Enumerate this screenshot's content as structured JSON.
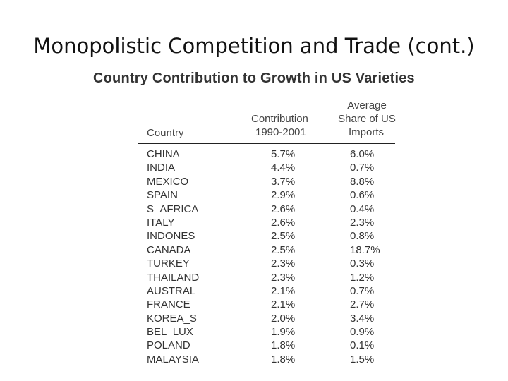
{
  "slide": {
    "title": "Monopolistic Competition and Trade (cont.)"
  },
  "table": {
    "title": "Country Contribution to Growth in US Varieties",
    "headers": {
      "country": "Country",
      "contribution_line1": "Contribution",
      "contribution_line2": "1990-2001",
      "share_line1": "Average",
      "share_line2": "Share of US",
      "share_line3": "Imports"
    },
    "rows": [
      {
        "country": "CHINA",
        "contribution": "5.7%",
        "share": "6.0%"
      },
      {
        "country": "INDIA",
        "contribution": "4.4%",
        "share": "0.7%"
      },
      {
        "country": "MEXICO",
        "contribution": "3.7%",
        "share": "8.8%"
      },
      {
        "country": "SPAIN",
        "contribution": "2.9%",
        "share": "0.6%"
      },
      {
        "country": "S_AFRICA",
        "contribution": "2.6%",
        "share": "0.4%"
      },
      {
        "country": "ITALY",
        "contribution": "2.6%",
        "share": "2.3%"
      },
      {
        "country": "INDONES",
        "contribution": "2.5%",
        "share": "0.8%"
      },
      {
        "country": "CANADA",
        "contribution": "2.5%",
        "share": "18.7%"
      },
      {
        "country": "TURKEY",
        "contribution": "2.3%",
        "share": "0.3%"
      },
      {
        "country": "THAILAND",
        "contribution": "2.3%",
        "share": "1.2%"
      },
      {
        "country": "AUSTRAL",
        "contribution": "2.1%",
        "share": "0.7%"
      },
      {
        "country": "FRANCE",
        "contribution": "2.1%",
        "share": "2.7%"
      },
      {
        "country": "KOREA_S",
        "contribution": "2.0%",
        "share": "3.4%"
      },
      {
        "country": "BEL_LUX",
        "contribution": "1.9%",
        "share": "0.9%"
      },
      {
        "country": "POLAND",
        "contribution": "1.8%",
        "share": "0.1%"
      },
      {
        "country": "MALAYSIA",
        "contribution": "1.8%",
        "share": "1.5%"
      }
    ]
  }
}
